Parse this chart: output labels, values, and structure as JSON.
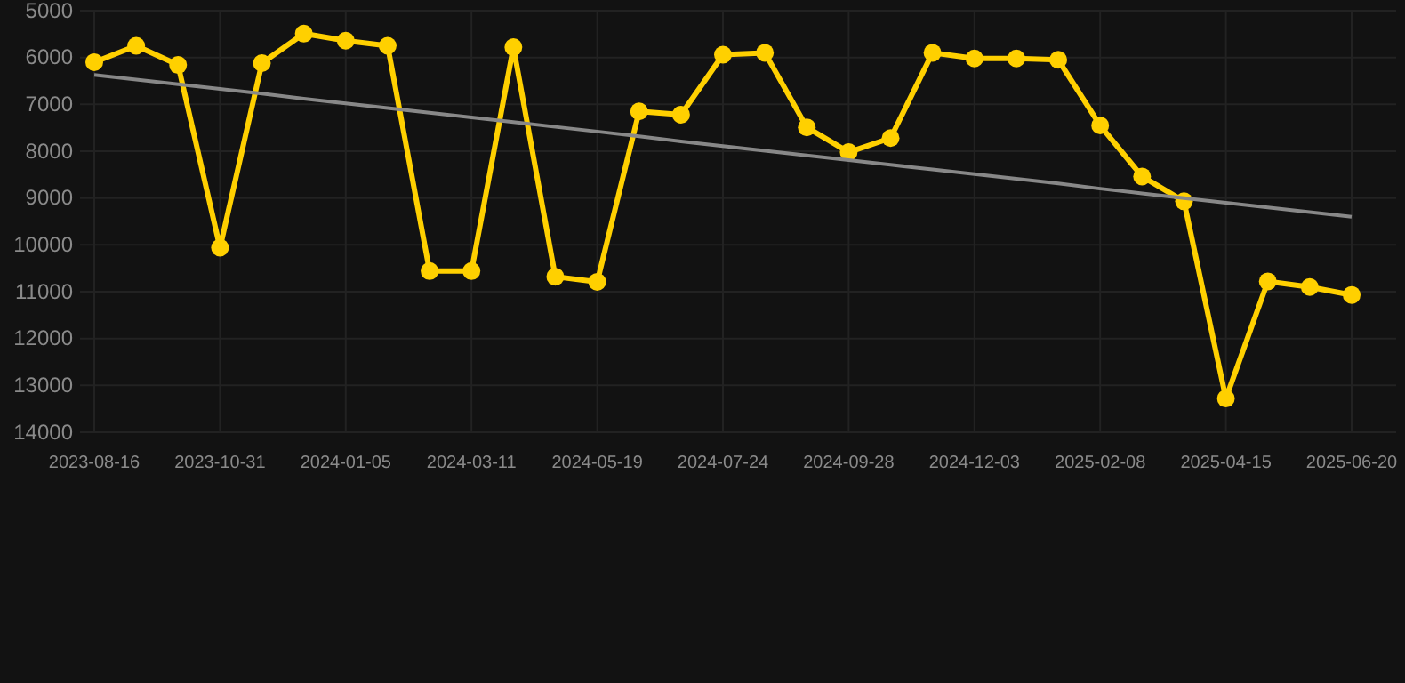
{
  "chart_data": {
    "type": "line",
    "categories": [
      "2023-08-16",
      null,
      null,
      "2023-10-31",
      null,
      null,
      "2024-01-05",
      null,
      null,
      "2024-03-11",
      null,
      null,
      "2024-05-19",
      null,
      null,
      "2024-07-24",
      null,
      null,
      "2024-09-28",
      null,
      null,
      "2024-12-03",
      null,
      null,
      "2025-02-08",
      null,
      null,
      "2025-04-15",
      null,
      null,
      "2025-06-20"
    ],
    "series": [
      {
        "color": "#ffd000",
        "values": [
          6100,
          5750,
          6160,
          10060,
          6120,
          5490,
          5640,
          5750,
          10560,
          10560,
          5780,
          10680,
          10790,
          7150,
          7220,
          5940,
          5900,
          7490,
          8020,
          7720,
          5900,
          6020,
          6020,
          6050,
          7450,
          8540,
          9070,
          13280,
          10780,
          10900,
          11070
        ]
      },
      {
        "type": "line",
        "marker": "none",
        "color": "#888888",
        "values": [
          6370,
          6470,
          6570,
          6670,
          6770,
          6880,
          6980,
          7080,
          7180,
          7280,
          7380,
          7480,
          7580,
          7680,
          7790,
          7890,
          7990,
          8090,
          8190,
          8290,
          8390,
          8490,
          8590,
          8690,
          8800,
          8900,
          9000,
          9100,
          9200,
          9300,
          9400
        ]
      }
    ],
    "ylim": [
      14000,
      5000
    ],
    "yticks": [
      5000,
      6000,
      7000,
      8000,
      9000,
      10000,
      11000,
      12000,
      13000,
      14000
    ],
    "grid": true,
    "marker": "circle",
    "line_style": "solid"
  }
}
